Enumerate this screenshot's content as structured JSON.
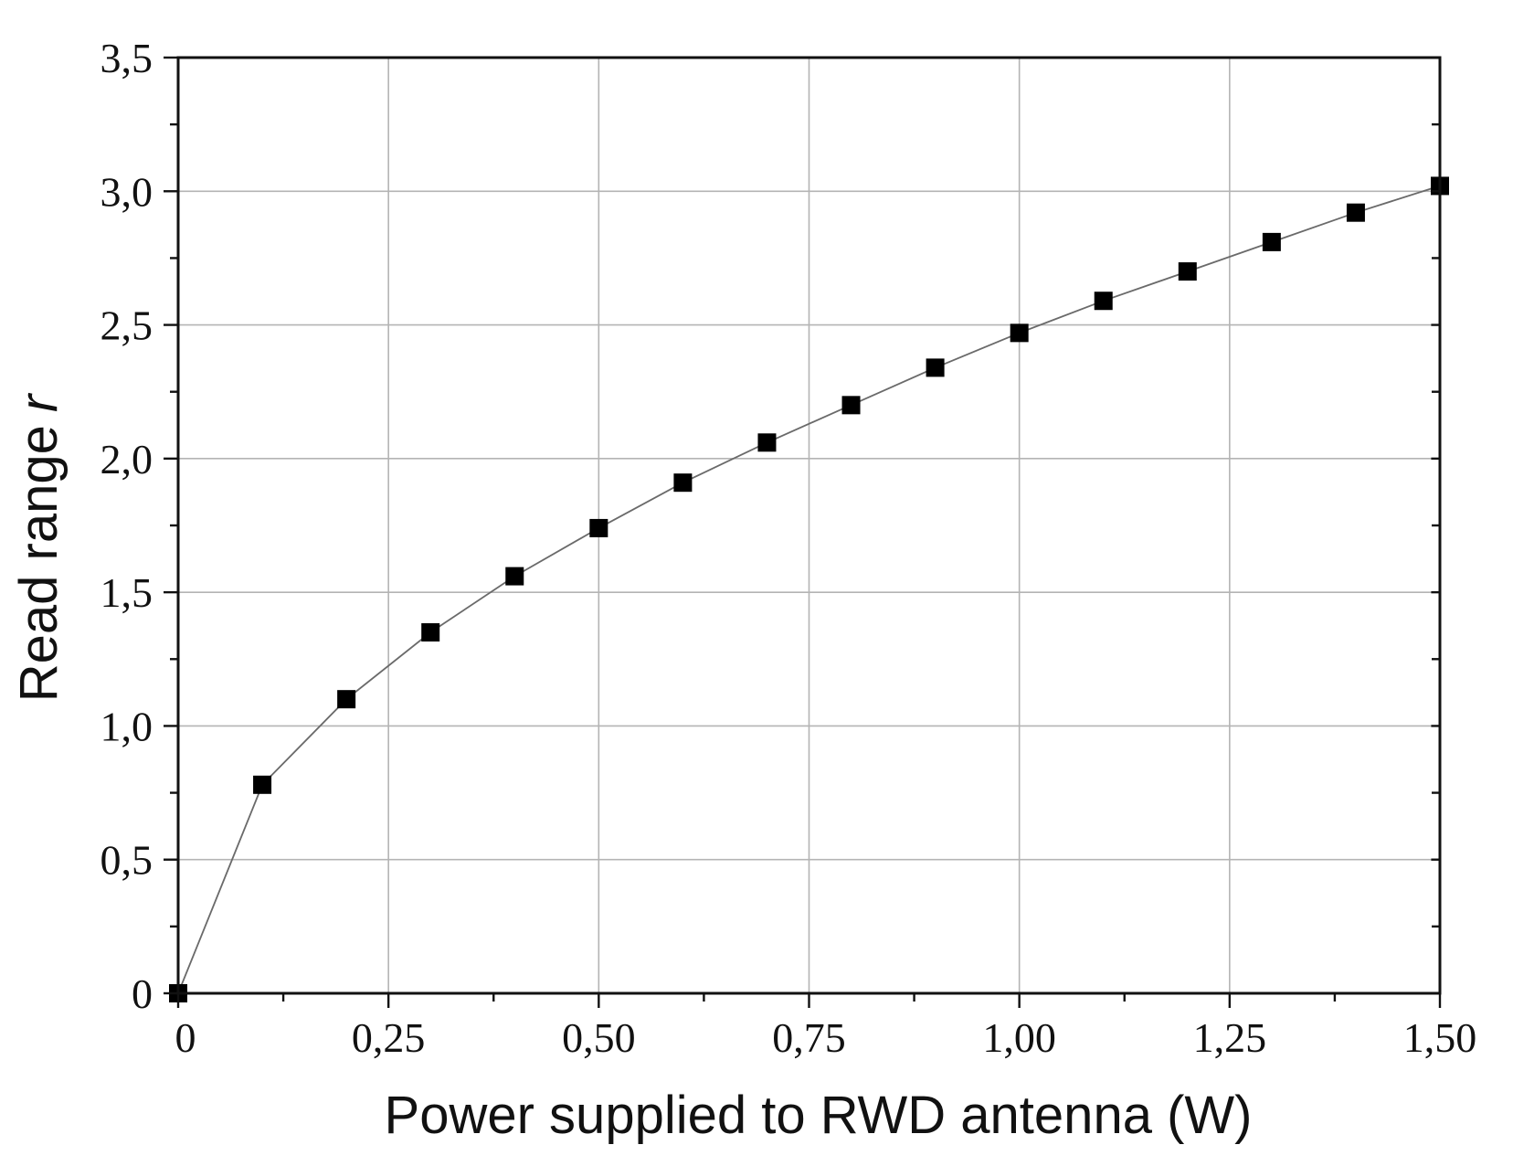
{
  "chart_data": {
    "type": "line",
    "xlabel": "Power supplied to RWD antenna (W)",
    "ylabel": "Read range",
    "ylabel_italic": "r",
    "xlim": [
      0,
      1.5
    ],
    "ylim": [
      0,
      3.5
    ],
    "x_ticks": [
      0,
      0.25,
      0.5,
      0.75,
      1.0,
      1.25,
      1.5
    ],
    "x_tick_labels": [
      "0",
      "0,25",
      "0,50",
      "0,75",
      "1,00",
      "1,25",
      "1,50"
    ],
    "y_ticks": [
      0,
      0.5,
      1.0,
      1.5,
      2.0,
      2.5,
      3.0,
      3.5
    ],
    "y_tick_labels": [
      "0",
      "0,5",
      "1,0",
      "1,5",
      "2,0",
      "2,5",
      "3,0",
      "3,5"
    ],
    "grid": true,
    "marker": "square",
    "series": [
      {
        "x": [
          0,
          0.1,
          0.2,
          0.3,
          0.4,
          0.5,
          0.6,
          0.7,
          0.8,
          0.9,
          1.0,
          1.1,
          1.2,
          1.3,
          1.4,
          1.5
        ],
        "y": [
          0,
          0.78,
          1.1,
          1.35,
          1.56,
          1.74,
          1.91,
          2.06,
          2.2,
          2.34,
          2.47,
          2.59,
          2.7,
          2.81,
          2.92,
          3.02
        ]
      }
    ]
  }
}
